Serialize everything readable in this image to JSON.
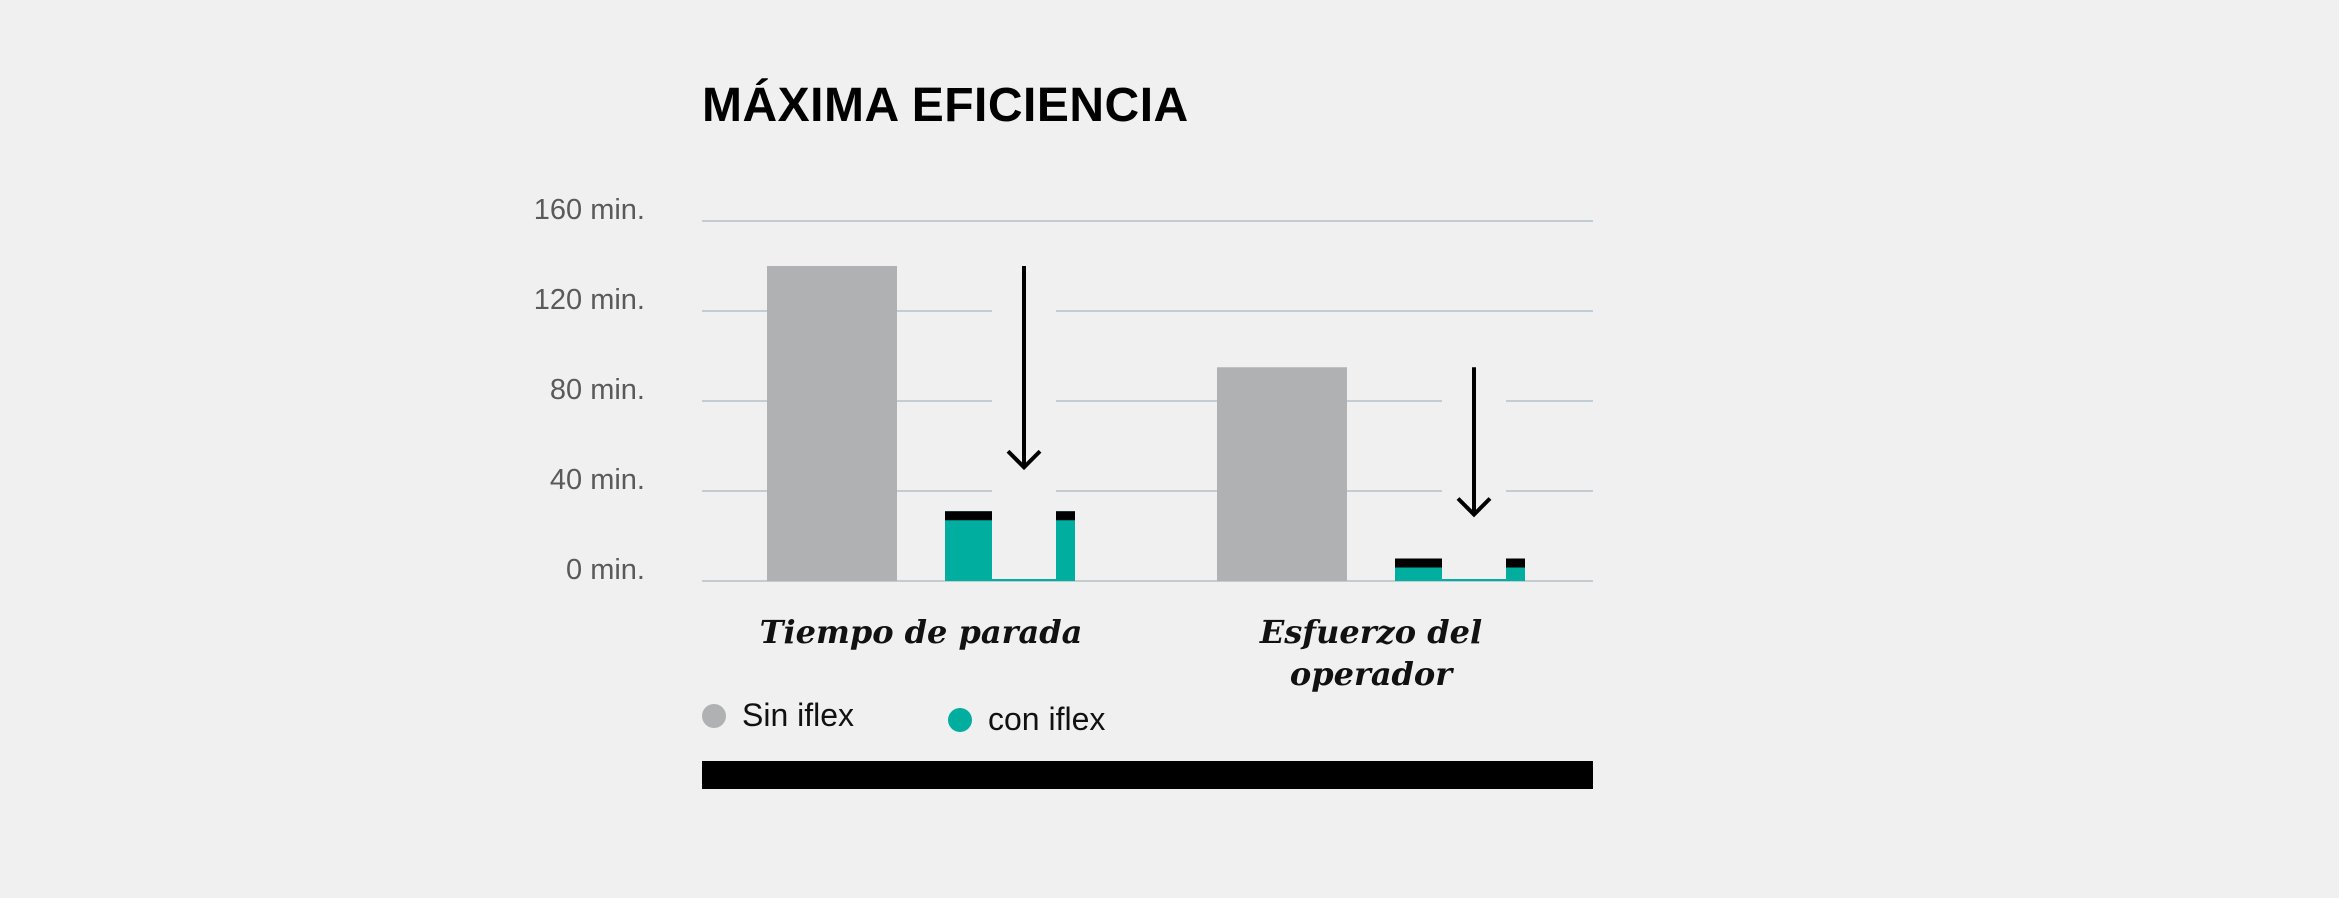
{
  "chart_data": {
    "type": "bar",
    "title": "MÁXIMA EFICIENCIA",
    "categories": [
      "Tiempo de parada",
      "Esfuerzo del operador"
    ],
    "category_lines": [
      [
        "Tiempo de parada"
      ],
      [
        "Esfuerzo del",
        "operador"
      ]
    ],
    "series": [
      {
        "name": "Sin iflex",
        "color": "#b0b1b2",
        "values": [
          140,
          95
        ]
      },
      {
        "name": "con iflex",
        "color": "#00ae9f",
        "values": [
          31,
          10
        ]
      }
    ],
    "ylim": [
      0,
      160
    ],
    "yticks": [
      0,
      40,
      80,
      120,
      160
    ],
    "ytick_labels": [
      "0 min.",
      "40 min.",
      "80 min.",
      "120 min.",
      "160 min."
    ],
    "grid": true,
    "grid_color": "#c3ccd3",
    "reduction_arrows": true,
    "legend_position": "bottom-left",
    "accent_bar_color": "#000000"
  }
}
